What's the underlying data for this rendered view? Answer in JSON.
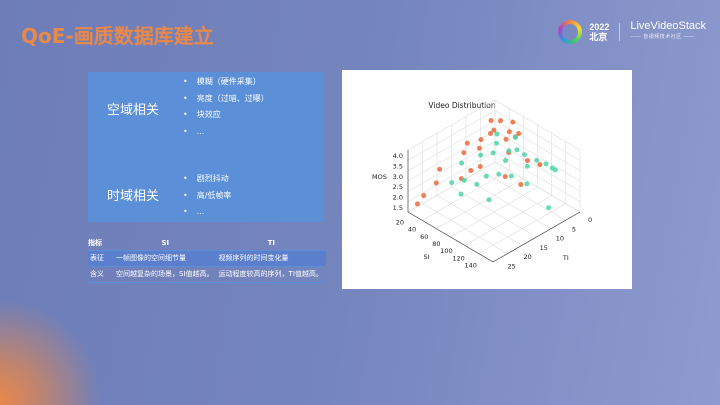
{
  "slide": {
    "title": "QoE-画质数据库建立"
  },
  "logo": {
    "year": "2022",
    "city": "北京",
    "brand": "LiveVideoStack",
    "tagline": "—— 音视频技术社区 ——"
  },
  "factors": [
    {
      "category": "空域相关",
      "items": [
        "模糊（硬件采集）",
        "亮度（过暗、过曝）",
        "块效应",
        "..."
      ]
    },
    {
      "category": "时域相关",
      "items": [
        "剧烈抖动",
        "高/低帧率",
        "..."
      ]
    }
  ],
  "table": {
    "headers": [
      "指标",
      "SI",
      "TI"
    ],
    "rows": [
      [
        "表征",
        "一帧图像的空间细节量",
        "视频序列的时间变化量"
      ],
      [
        "含义",
        "空间越复杂的场景，SI值越高。",
        "运动程度较高的序列，TI值越高。"
      ]
    ]
  },
  "chart_data": {
    "type": "scatter3d",
    "title": "Video Distribution",
    "xlabel": "SI",
    "ylabel": "TI",
    "zlabel": "MOS",
    "xlim": [
      10,
      150
    ],
    "ylim": [
      0,
      27
    ],
    "zlim": [
      1.3,
      4.3
    ],
    "xticks": [
      "20",
      "40",
      "60",
      "80",
      "100",
      "120",
      "140"
    ],
    "yticks": [
      "0",
      "5",
      "10",
      "15",
      "20",
      "25"
    ],
    "zticks": [
      "1.5",
      "2.0",
      "2.5",
      "3.0",
      "3.5",
      "4.0"
    ],
    "grid": true,
    "colors": {
      "orange": "#ea6a3a",
      "teal": "#4fd3a8"
    },
    "series": [
      {
        "color": "orange",
        "points": [
          [
            30,
            5,
            4.1
          ],
          [
            35,
            3,
            4.0
          ],
          [
            40,
            6,
            3.9
          ],
          [
            45,
            8,
            4.0
          ],
          [
            50,
            2,
            4.1
          ],
          [
            28,
            12,
            3.6
          ],
          [
            33,
            14,
            3.4
          ],
          [
            55,
            4,
            3.9
          ],
          [
            60,
            6,
            3.8
          ],
          [
            40,
            10,
            3.8
          ],
          [
            48,
            12,
            3.7
          ],
          [
            25,
            20,
            3.0
          ],
          [
            65,
            3,
            3.9
          ],
          [
            70,
            5,
            4.0
          ],
          [
            30,
            22,
            2.6
          ],
          [
            50,
            18,
            2.8
          ],
          [
            60,
            14,
            3.2
          ],
          [
            75,
            8,
            3.6
          ],
          [
            90,
            5,
            3.2
          ],
          [
            80,
            10,
            2.7
          ],
          [
            15,
            25,
            1.6
          ],
          [
            20,
            24,
            2.0
          ],
          [
            95,
            8,
            2.4
          ],
          [
            100,
            3,
            3.0
          ],
          [
            55,
            16,
            3.1
          ]
        ]
      },
      {
        "color": "teal",
        "points": [
          [
            45,
            6,
            3.8
          ],
          [
            55,
            8,
            3.7
          ],
          [
            65,
            4,
            3.8
          ],
          [
            50,
            12,
            3.4
          ],
          [
            60,
            10,
            3.5
          ],
          [
            70,
            7,
            3.5
          ],
          [
            75,
            9,
            3.3
          ],
          [
            85,
            5,
            3.4
          ],
          [
            80,
            12,
            3.0
          ],
          [
            90,
            10,
            2.9
          ],
          [
            95,
            6,
            3.1
          ],
          [
            100,
            4,
            3.3
          ],
          [
            40,
            16,
            3.2
          ],
          [
            55,
            18,
            2.8
          ],
          [
            65,
            16,
            2.6
          ],
          [
            110,
            3,
            3.2
          ],
          [
            115,
            2,
            3.0
          ],
          [
            120,
            2,
            3.0
          ],
          [
            60,
            20,
            2.4
          ],
          [
            85,
            16,
            2.2
          ],
          [
            130,
            6,
            1.7
          ],
          [
            70,
            14,
            2.9
          ],
          [
            105,
            8,
            2.6
          ],
          [
            45,
            20,
            2.7
          ],
          [
            78,
            6,
            3.6
          ]
        ]
      }
    ]
  }
}
